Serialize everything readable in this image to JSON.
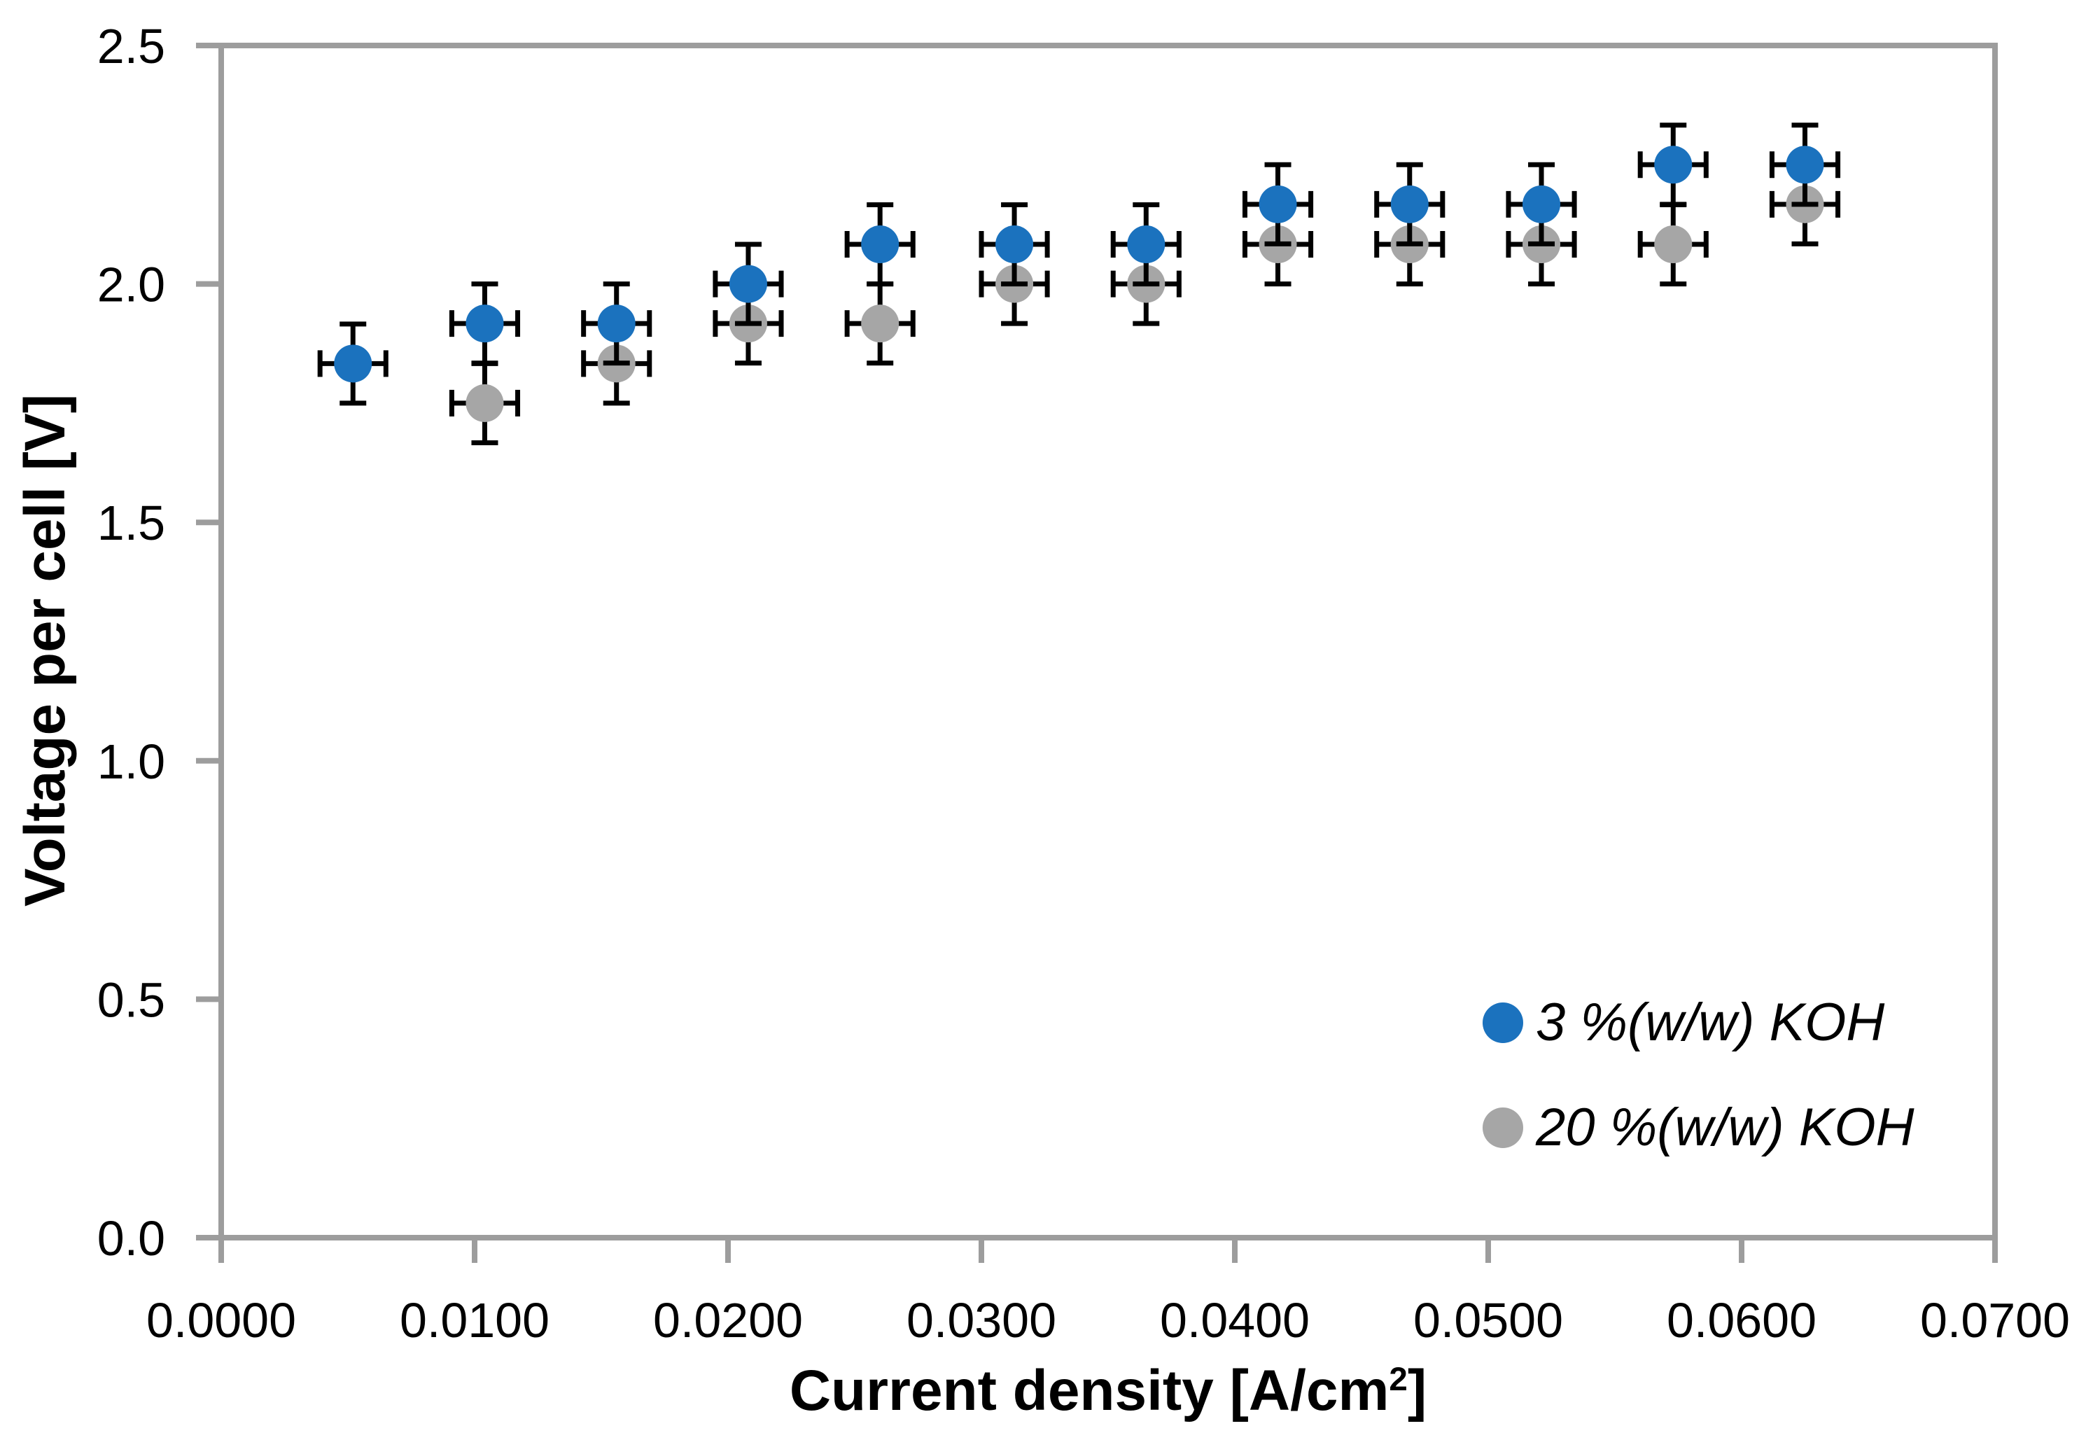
{
  "chart_data": {
    "type": "scatter",
    "title": "",
    "xlabel": "Current density [A/cm²]",
    "xlabel_parts": {
      "prefix": "Current density [A/cm",
      "sup": "2",
      "suffix": "]"
    },
    "ylabel": "Voltage per cell [V]",
    "xlim": [
      0.0,
      0.07
    ],
    "ylim": [
      0.0,
      2.5
    ],
    "x_tick_labels": [
      "0.0000",
      "0.0100",
      "0.0200",
      "0.0300",
      "0.0400",
      "0.0500",
      "0.0600",
      "0.0700"
    ],
    "y_tick_labels": [
      "0.0",
      "0.5",
      "1.0",
      "1.5",
      "2.0",
      "2.5"
    ],
    "grid": false,
    "legend_position": "inside lower right",
    "axis_color": "#9D9D9D",
    "error_bar_color": "#000000",
    "series": [
      {
        "name": "3 %(w/w) KOH",
        "color": "#1B72BE",
        "marker": "circle",
        "x_err": 0.0013,
        "y_err": 0.083,
        "x": [
          0.0052,
          0.0104,
          0.0156,
          0.0208,
          0.026,
          0.0313,
          0.0365,
          0.0417,
          0.0469,
          0.0521,
          0.0573,
          0.0625
        ],
        "y": [
          1.833,
          1.917,
          1.917,
          2.0,
          2.083,
          2.083,
          2.083,
          2.167,
          2.167,
          2.167,
          2.25,
          2.25
        ]
      },
      {
        "name": "20 %(w/w) KOH",
        "color": "#A6A6A6",
        "marker": "circle",
        "x_err": 0.0013,
        "y_err": 0.083,
        "x": [
          0.0104,
          0.0156,
          0.0208,
          0.026,
          0.0313,
          0.0365,
          0.0417,
          0.0469,
          0.0521,
          0.0573,
          0.0625
        ],
        "y": [
          1.75,
          1.833,
          1.917,
          1.917,
          2.0,
          2.0,
          2.083,
          2.083,
          2.083,
          2.083,
          2.167
        ]
      }
    ]
  }
}
